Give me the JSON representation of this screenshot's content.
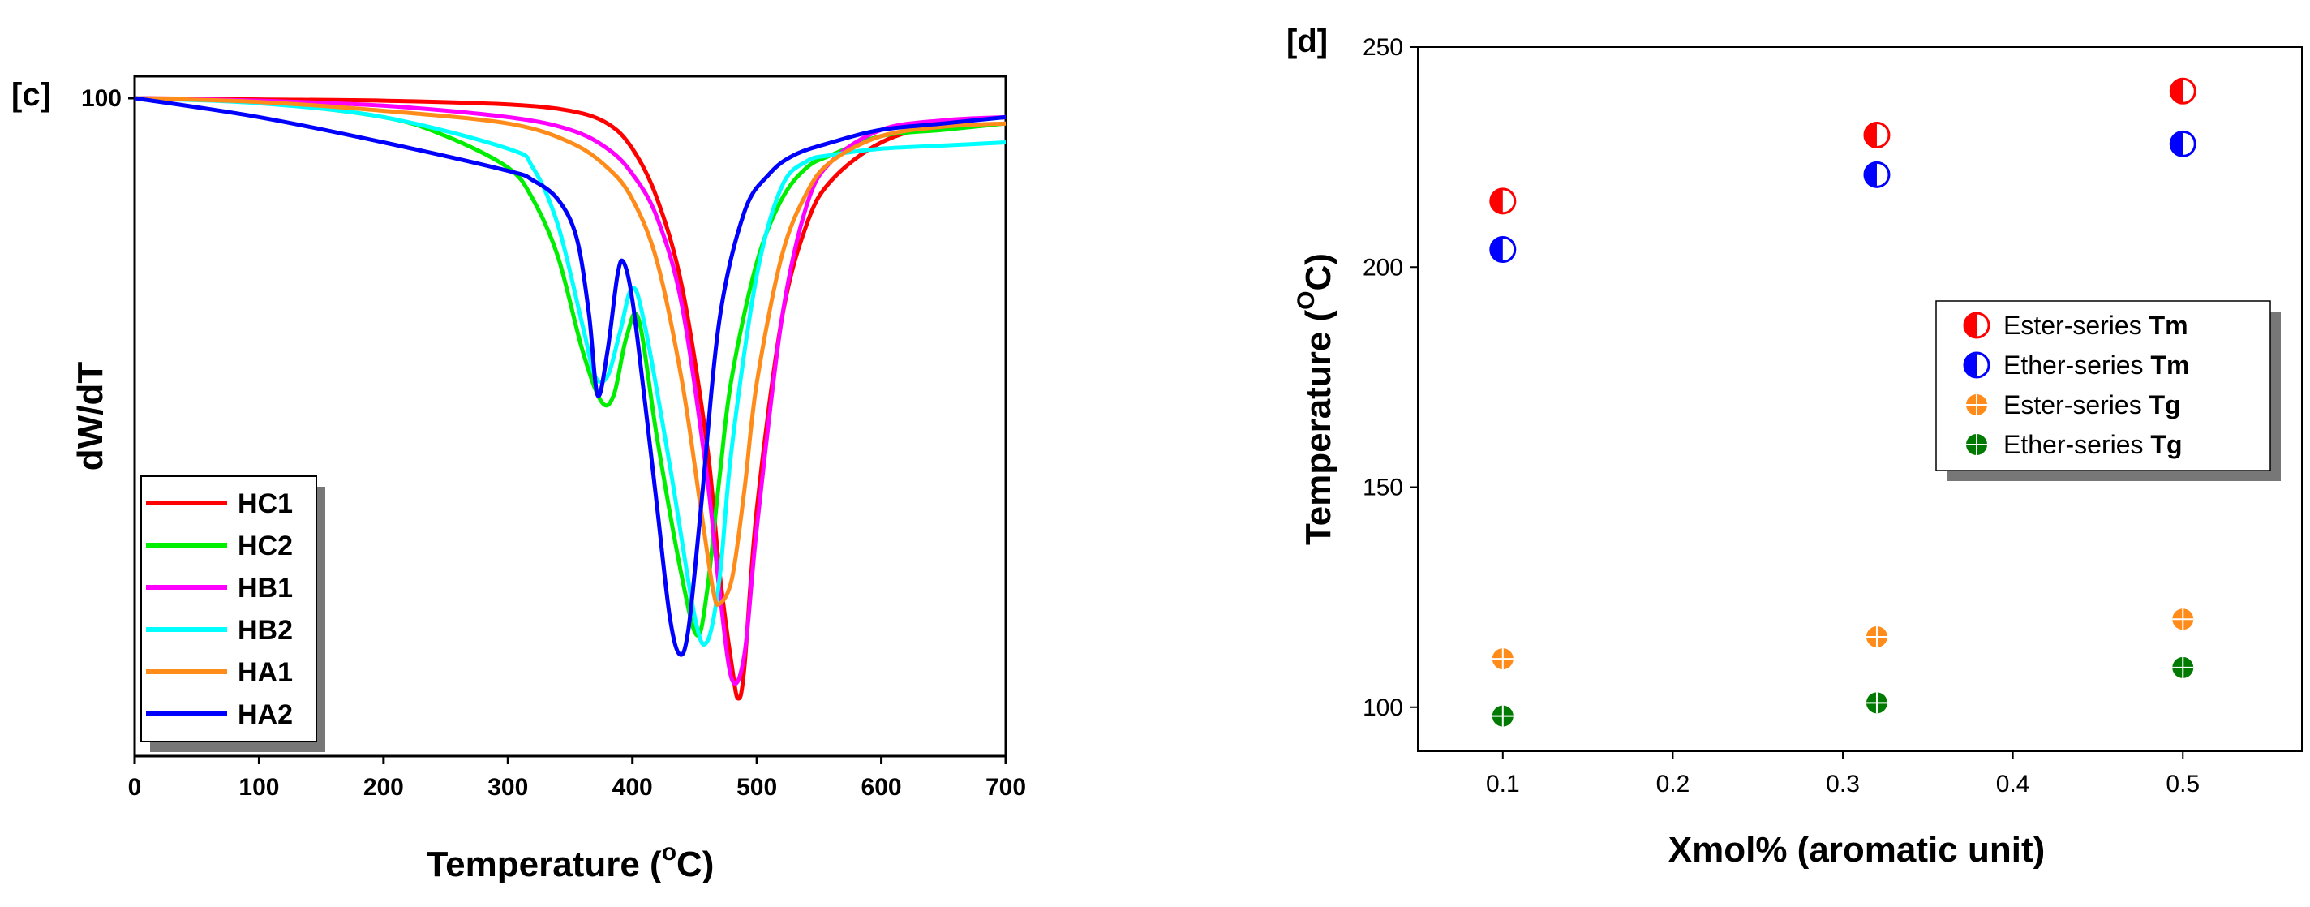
{
  "chart_data": [
    {
      "panel_label": "[c]",
      "type": "line",
      "xlabel": "Temperature (",
      "xlabel_sup": "o",
      "xlabel_tail": "C)",
      "ylabel": "dW/dT",
      "xlim": [
        0,
        700
      ],
      "xticks": [
        "0",
        "100",
        "200",
        "300",
        "400",
        "500",
        "600",
        "700"
      ],
      "ytick_label": "100",
      "grid": false,
      "legend_position": "bottom-left",
      "series": [
        {
          "name": "HC1",
          "color": "#ff0000",
          "x": [
            0,
            100,
            200,
            300,
            350,
            380,
            400,
            420,
            440,
            460,
            470,
            480,
            485,
            490,
            500,
            520,
            540,
            560,
            600,
            650,
            700
          ],
          "y": [
            100,
            99.8,
            99.6,
            99,
            98,
            96,
            92,
            84,
            70,
            45,
            25,
            10,
            5,
            10,
            35,
            65,
            80,
            87,
            93,
            96,
            97
          ]
        },
        {
          "name": "HC2",
          "color": "#00ee00",
          "x": [
            0,
            100,
            200,
            250,
            300,
            320,
            340,
            360,
            375,
            385,
            395,
            405,
            420,
            440,
            452,
            460,
            470,
            480,
            500,
            520,
            540,
            560,
            600,
            650,
            700
          ],
          "y": [
            100,
            99.3,
            97,
            94,
            89,
            84,
            75,
            60,
            52,
            53,
            62,
            65,
            46,
            24,
            15,
            22,
            40,
            56,
            74,
            84,
            89,
            91,
            94,
            95,
            96
          ]
        },
        {
          "name": "HB1",
          "color": "#ff00ff",
          "x": [
            0,
            100,
            200,
            300,
            350,
            380,
            400,
            420,
            440,
            460,
            470,
            480,
            490,
            500,
            520,
            540,
            560,
            600,
            650,
            700
          ],
          "y": [
            100,
            99.6,
            98.8,
            97,
            95,
            92,
            88,
            81,
            67,
            40,
            22,
            8,
            12,
            32,
            65,
            83,
            90,
            95,
            96.5,
            97
          ]
        },
        {
          "name": "HB2",
          "color": "#00ffff",
          "x": [
            0,
            100,
            200,
            300,
            320,
            340,
            360,
            370,
            380,
            390,
            400,
            410,
            430,
            450,
            460,
            470,
            480,
            500,
            520,
            540,
            560,
            600,
            650,
            700
          ],
          "y": [
            100,
            99.2,
            97,
            92,
            89,
            80,
            64,
            56,
            56,
            63,
            70,
            64,
            42,
            18,
            14,
            24,
            45,
            72,
            86,
            90,
            91,
            92,
            92.5,
            93
          ]
        },
        {
          "name": "HA1",
          "color": "#ff8c1a",
          "x": [
            0,
            100,
            200,
            300,
            350,
            380,
            400,
            420,
            440,
            455,
            465,
            470,
            480,
            490,
            500,
            520,
            540,
            560,
            600,
            650,
            700
          ],
          "y": [
            100,
            99.4,
            98,
            96,
            93,
            89,
            84,
            74,
            55,
            35,
            22,
            20,
            24,
            38,
            55,
            75,
            85,
            90,
            94,
            95.5,
            96
          ]
        },
        {
          "name": "HA2",
          "color": "#0000ff",
          "x": [
            0,
            100,
            200,
            300,
            320,
            340,
            355,
            365,
            372,
            380,
            388,
            393,
            400,
            410,
            420,
            430,
            438,
            445,
            455,
            470,
            490,
            510,
            530,
            560,
            600,
            650,
            700
          ],
          "y": [
            100,
            97,
            93,
            88.5,
            87,
            84,
            78,
            66,
            53,
            60,
            72,
            74,
            68,
            52,
            35,
            18,
            12,
            16,
            35,
            65,
            82,
            88,
            91,
            93,
            95,
            96,
            97
          ]
        }
      ]
    },
    {
      "panel_label": "[d]",
      "type": "scatter",
      "xlabel": "Xmol% (aromatic unit)",
      "ylabel": "Temperature (",
      "ylabel_sup": "O",
      "ylabel_tail": "C)",
      "xlim": [
        0.05,
        0.57
      ],
      "ylim": [
        90,
        250
      ],
      "xticks": [
        0.1,
        0.2,
        0.3,
        0.4,
        0.5
      ],
      "xtick_labels": [
        "0.1",
        "0.2",
        "0.3",
        "0.4",
        "0.5"
      ],
      "yticks": [
        100,
        150,
        200,
        250
      ],
      "ytick_labels": [
        "100",
        "150",
        "200",
        "250"
      ],
      "grid": false,
      "legend_position": "center-right",
      "series": [
        {
          "name": "Ester-series",
          "bold_suffix": "Tm",
          "marker": "half-circle",
          "color": "#ff0000",
          "x": [
            0.1,
            0.32,
            0.5
          ],
          "y": [
            215,
            230,
            240
          ]
        },
        {
          "name": "Ether-series",
          "bold_suffix": "Tm",
          "marker": "half-circle",
          "color": "#0000ff",
          "x": [
            0.1,
            0.32,
            0.5
          ],
          "y": [
            204,
            221,
            228
          ]
        },
        {
          "name": "Ester-series",
          "bold_suffix": "Tg",
          "marker": "cross-circle",
          "color": "#ff8c1a",
          "x": [
            0.1,
            0.32,
            0.5
          ],
          "y": [
            111,
            116,
            120
          ]
        },
        {
          "name": "Ether-series",
          "bold_suffix": "Tg",
          "marker": "cross-circle",
          "color": "#007a00",
          "x": [
            0.1,
            0.32,
            0.5
          ],
          "y": [
            98,
            101,
            109
          ]
        }
      ]
    }
  ]
}
